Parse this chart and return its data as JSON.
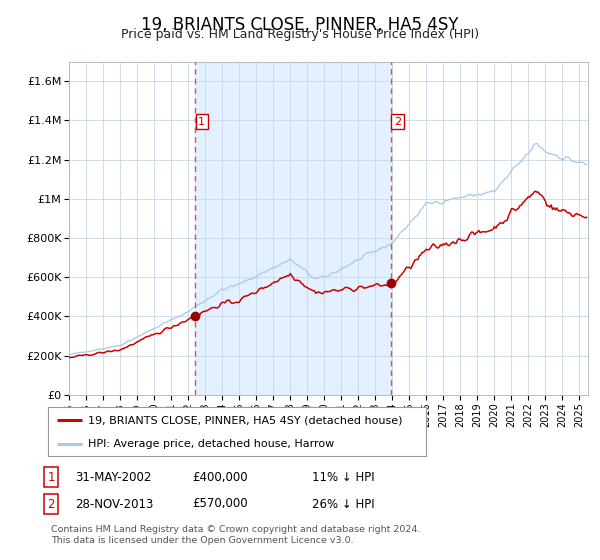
{
  "title": "19, BRIANTS CLOSE, PINNER, HA5 4SY",
  "subtitle": "Price paid vs. HM Land Registry's House Price Index (HPI)",
  "title_fontsize": 12,
  "subtitle_fontsize": 9,
  "xlim_start": 1995.0,
  "xlim_end": 2025.5,
  "ylim_bottom": 0,
  "ylim_top": 1700000,
  "yticks": [
    0,
    200000,
    400000,
    600000,
    800000,
    1000000,
    1200000,
    1400000,
    1600000
  ],
  "ytick_labels": [
    "£0",
    "£200K",
    "£400K",
    "£600K",
    "£800K",
    "£1M",
    "£1.2M",
    "£1.4M",
    "£1.6M"
  ],
  "hpi_color": "#a8c8e8",
  "property_color": "#cc0000",
  "marker_color": "#990000",
  "dashed_line_color": "#e05050",
  "shading_color": "#ddeeff",
  "legend_label_property": "19, BRIANTS CLOSE, PINNER, HA5 4SY (detached house)",
  "legend_label_hpi": "HPI: Average price, detached house, Harrow",
  "transaction1_date_num": 2002.42,
  "transaction1_value": 400000,
  "transaction1_label": "1",
  "transaction2_date_num": 2013.91,
  "transaction2_value": 570000,
  "transaction2_label": "2",
  "footnote3": "Contains HM Land Registry data © Crown copyright and database right 2024.",
  "footnote4": "This data is licensed under the Open Government Licence v3.0.",
  "plot_bg_color": "#ffffff",
  "font_family": "DejaVu Sans"
}
